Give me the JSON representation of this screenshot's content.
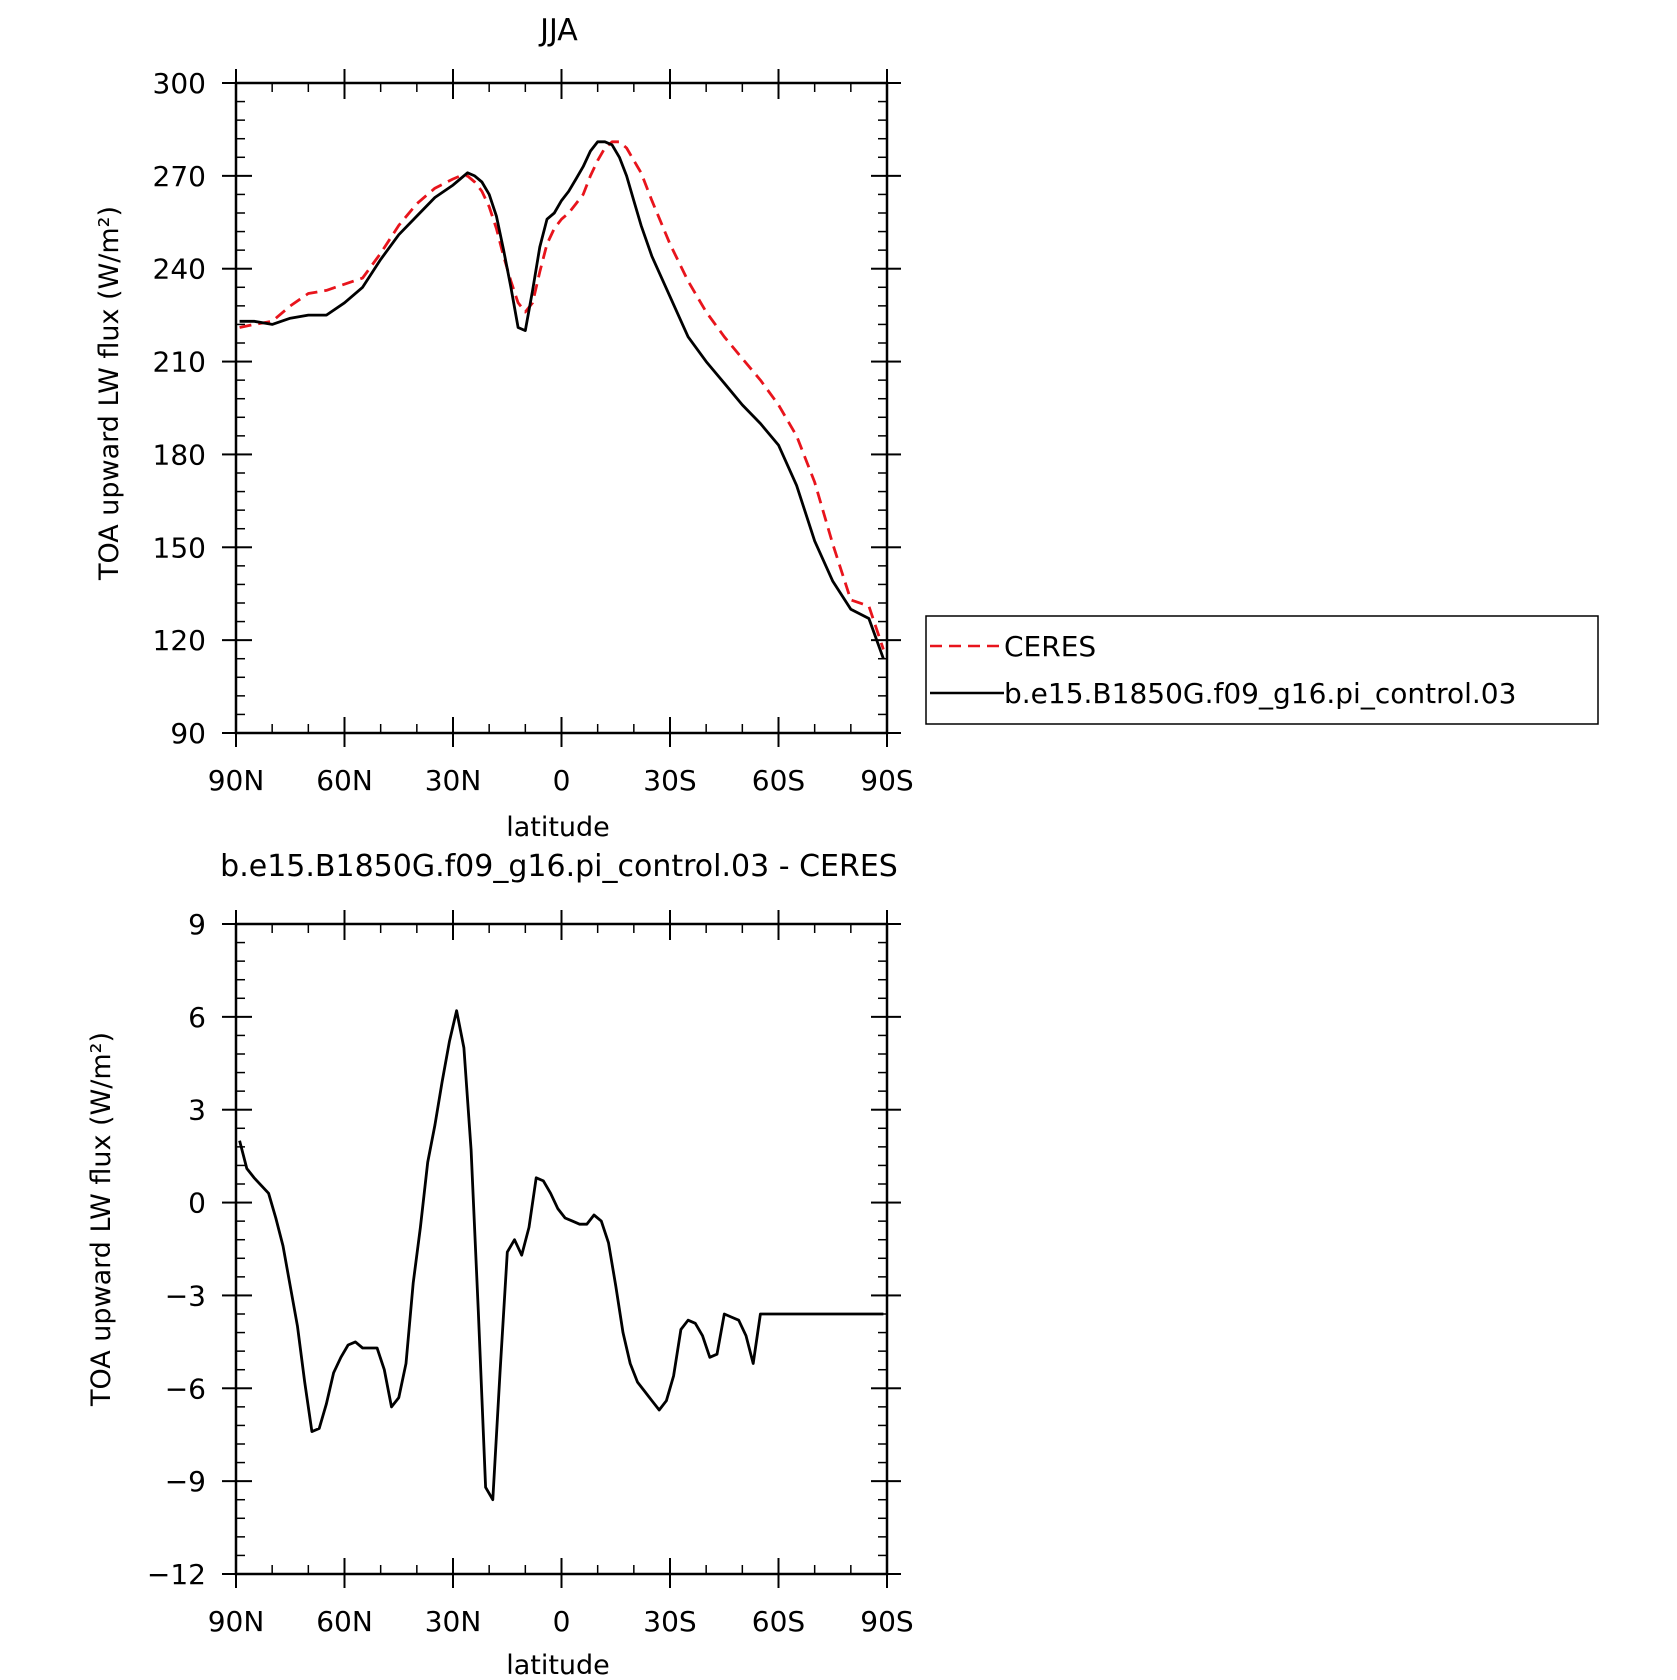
{
  "chart_data": [
    {
      "type": "line",
      "title": "JJA",
      "xlabel": "latitude",
      "ylabel": "TOA upward LW flux (W/m²)",
      "xlim": [
        90,
        -90
      ],
      "ylim": [
        90,
        300
      ],
      "xticks": [
        90,
        60,
        30,
        0,
        -30,
        -60,
        -90
      ],
      "xtick_labels": [
        "90N",
        "60N",
        "30N",
        "0",
        "30S",
        "60S",
        "90S"
      ],
      "yticks": [
        90,
        120,
        150,
        180,
        210,
        240,
        270,
        300
      ],
      "grid": false,
      "legend": {
        "placement": "right",
        "entries": [
          "CERES",
          "b.e15.B1850G.f09_g16.pi_control.03"
        ]
      },
      "series": [
        {
          "name": "CERES",
          "color": "#e8141c",
          "dash": "dashed",
          "x": [
            89,
            85,
            80,
            75,
            70,
            65,
            60,
            55,
            50,
            45,
            40,
            35,
            30,
            28,
            26,
            24,
            22,
            20,
            18,
            16,
            14,
            12,
            10,
            8,
            6,
            4,
            2,
            0,
            -2,
            -4,
            -6,
            -8,
            -10,
            -12,
            -14,
            -16,
            -18,
            -20,
            -22,
            -25,
            -30,
            -35,
            -40,
            -45,
            -50,
            -55,
            -60,
            -65,
            -70,
            -75,
            -80,
            -85,
            -89
          ],
          "values": [
            221,
            222,
            223,
            228,
            232,
            233,
            235,
            237,
            245,
            254,
            261,
            266,
            269,
            270,
            270,
            268,
            265,
            260,
            253,
            244,
            236,
            229,
            226,
            229,
            239,
            248,
            253,
            256,
            258,
            261,
            264,
            270,
            275,
            279,
            281,
            281,
            279,
            275,
            271,
            262,
            248,
            236,
            226,
            218,
            211,
            204,
            196,
            186,
            171,
            151,
            133,
            131,
            117
          ]
        },
        {
          "name": "b.e15.B1850G.f09_g16.pi_control.03",
          "color": "#000000",
          "dash": "solid",
          "x": [
            89,
            85,
            80,
            75,
            70,
            65,
            60,
            55,
            50,
            45,
            40,
            35,
            30,
            28,
            26,
            24,
            22,
            20,
            18,
            16,
            14,
            12,
            10,
            8,
            6,
            4,
            2,
            0,
            -2,
            -4,
            -6,
            -8,
            -10,
            -12,
            -14,
            -16,
            -18,
            -20,
            -22,
            -25,
            -30,
            -35,
            -40,
            -45,
            -50,
            -55,
            -60,
            -65,
            -70,
            -75,
            -80,
            -85,
            -89
          ],
          "values": [
            223,
            223,
            222,
            224,
            225,
            225,
            229,
            234,
            243,
            251,
            257,
            263,
            267,
            269,
            271,
            270,
            268,
            264,
            257,
            246,
            234,
            221,
            220,
            233,
            247,
            256,
            258,
            262,
            265,
            269,
            273,
            278,
            281,
            281,
            280,
            276,
            270,
            262,
            254,
            244,
            231,
            218,
            210,
            203,
            196,
            190,
            183,
            170,
            152,
            139,
            130,
            127,
            114
          ]
        }
      ]
    },
    {
      "type": "line",
      "title": "b.e15.B1850G.f09_g16.pi_control.03 - CERES",
      "xlabel": "latitude",
      "ylabel": "TOA upward LW flux (W/m²)",
      "xlim": [
        90,
        -90
      ],
      "ylim": [
        -12,
        9
      ],
      "xticks": [
        90,
        60,
        30,
        0,
        -30,
        -60,
        -90
      ],
      "xtick_labels": [
        "90N",
        "60N",
        "30N",
        "0",
        "30S",
        "60S",
        "90S"
      ],
      "yticks": [
        -12,
        -9,
        -6,
        -3,
        0,
        3,
        6,
        9
      ],
      "ytick_labels": [
        "−12",
        "−9",
        "−6",
        "−3",
        "0",
        "3",
        "6",
        "9"
      ],
      "grid": false,
      "series": [
        {
          "color": "#000000",
          "dash": "solid",
          "x": [
            89,
            87,
            85,
            81,
            79,
            77,
            73,
            71,
            69,
            67,
            65,
            63,
            61,
            59,
            57,
            55,
            53,
            51,
            49,
            47,
            45,
            43,
            41,
            39,
            37,
            35,
            33,
            31,
            29,
            27,
            25,
            23,
            21,
            19,
            17,
            15,
            13,
            11,
            9,
            7,
            5,
            3,
            1,
            -1,
            -3,
            -5,
            -7,
            -9,
            -11,
            -13,
            -15,
            -17,
            -19,
            -21,
            -23,
            -25,
            -27,
            -29,
            -31,
            -33,
            -35,
            -37,
            -39,
            -41,
            -43,
            -45,
            -47,
            -49,
            -51,
            -53,
            -55,
            -57,
            -59,
            -61,
            -63,
            -65,
            -67,
            -69,
            -71,
            -73,
            -75,
            -77,
            -79,
            -81,
            -83,
            -85,
            -87,
            -89
          ],
          "values": [
            2.0,
            1.1,
            0.8,
            0.3,
            -0.5,
            -1.4,
            -4.0,
            -5.8,
            -7.4,
            -7.3,
            -6.5,
            -5.5,
            -5.0,
            -4.6,
            -4.5,
            -4.7,
            -4.7,
            -4.7,
            -5.4,
            -6.6,
            -6.3,
            -5.2,
            -2.6,
            -0.8,
            1.3,
            2.5,
            3.9,
            5.2,
            6.2,
            5.0,
            1.7,
            -3.5,
            -9.2,
            -9.6,
            -5.5,
            -1.6,
            -1.2,
            -1.7,
            -0.8,
            0.8,
            0.7,
            0.3,
            -0.2,
            -0.5,
            -0.6,
            -0.7,
            -0.7,
            -0.4,
            -0.6,
            -1.3,
            -2.7,
            -4.2,
            -5.2,
            -5.8,
            -6.1,
            -6.4,
            -6.7,
            -6.4,
            -5.6,
            -4.1,
            -3.8,
            -3.9,
            -4.3,
            -5.0,
            -4.9,
            -3.6,
            -3.7,
            -3.8,
            -4.3,
            -5.2,
            -3.6,
            -3.6,
            -3.6,
            -3.6,
            -3.6,
            -3.6,
            -3.6,
            -3.6,
            -3.6,
            -3.6,
            -3.6,
            -3.6,
            -3.6,
            -3.6,
            -3.6,
            -3.6,
            -3.6,
            -3.6
          ]
        }
      ]
    }
  ]
}
